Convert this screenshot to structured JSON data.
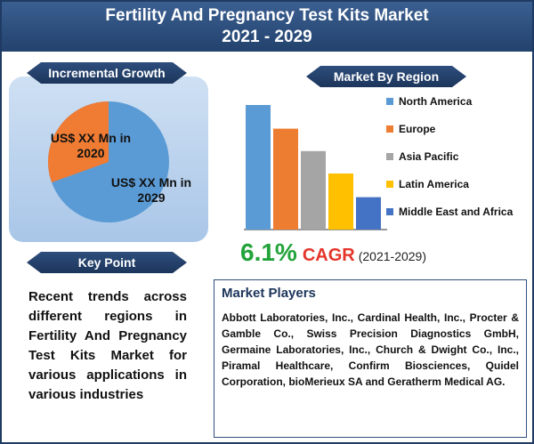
{
  "header": {
    "title_line1": "Fertility And Pregnancy Test Kits Market",
    "title_line2": "2021 - 2029"
  },
  "incremental_growth": {
    "title": "Incremental Growth",
    "label_2020": "US$ XX Mn in 2020",
    "label_2029": "US$ XX Mn in 2029",
    "colors": {
      "share_2020": "#f07c33",
      "share_2029": "#5b9bd5"
    }
  },
  "key_point": {
    "title": "Key Point",
    "text": "Recent trends across different regions in Fertility And Pregnancy Test Kits Market for various applications in various industries"
  },
  "market_by_region": {
    "title": "Market By Region",
    "legend": [
      {
        "label": "North America",
        "color": "#5b9bd5"
      },
      {
        "label": "Europe",
        "color": "#ed7d31"
      },
      {
        "label": "Asia Pacific",
        "color": "#a5a5a5"
      },
      {
        "label": "Latin America",
        "color": "#ffc000"
      },
      {
        "label": "Middle East and Africa",
        "color": "#4472c4"
      }
    ]
  },
  "chart_data": {
    "type": "bar",
    "categories": [
      "North America",
      "Europe",
      "Asia Pacific",
      "Latin America",
      "Middle East and Africa"
    ],
    "values": [
      100,
      81,
      63,
      45,
      26
    ],
    "title": "Market By Region",
    "xlabel": "",
    "ylabel": "",
    "ylim": [
      0,
      100
    ],
    "grid": false,
    "legend_placement": "right"
  },
  "cagr": {
    "value": "6.1%",
    "label": "CAGR",
    "years": "(2021-2029)"
  },
  "market_players": {
    "title": "Market Players",
    "text": "Abbott Laboratories, Inc., Cardinal Health, Inc., Procter & Gamble Co., Swiss Precision Diagnostics GmbH, Germaine Laboratories, Inc., Church & Dwight Co., Inc., Piramal Healthcare, Confirm Biosciences, Quidel Corporation, bioMerieux SA and Geratherm Medical AG."
  }
}
